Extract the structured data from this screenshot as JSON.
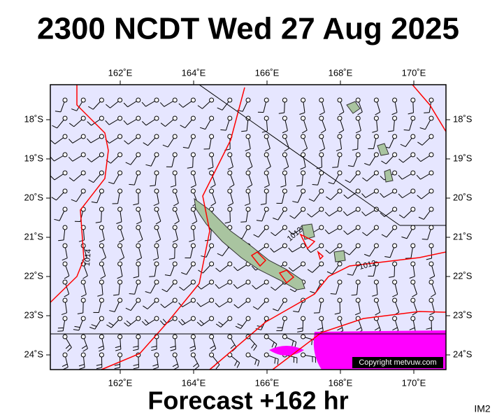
{
  "header": {
    "title": "2300 NCDT Wed 27 Aug 2025"
  },
  "map": {
    "lon_ticks": [
      {
        "value": 162,
        "label": "162˚E"
      },
      {
        "value": 164,
        "label": "164˚E"
      },
      {
        "value": 166,
        "label": "166˚E"
      },
      {
        "value": 168,
        "label": "168˚E"
      },
      {
        "value": 170,
        "label": "170˚E"
      }
    ],
    "lat_ticks": [
      {
        "value": -18,
        "label": "18˚S"
      },
      {
        "value": -19,
        "label": "19˚S"
      },
      {
        "value": -20,
        "label": "20˚S"
      },
      {
        "value": -21,
        "label": "21˚S"
      },
      {
        "value": -22,
        "label": "22˚S"
      },
      {
        "value": -23,
        "label": "23˚S"
      },
      {
        "value": -24,
        "label": "24˚S"
      }
    ],
    "isobar_labels": [
      "1014",
      "1012",
      "1012"
    ],
    "copyright": "Copyright metvuw.com"
  },
  "footer": {
    "forecast": "Forecast +162 hr",
    "code": "IM2"
  }
}
